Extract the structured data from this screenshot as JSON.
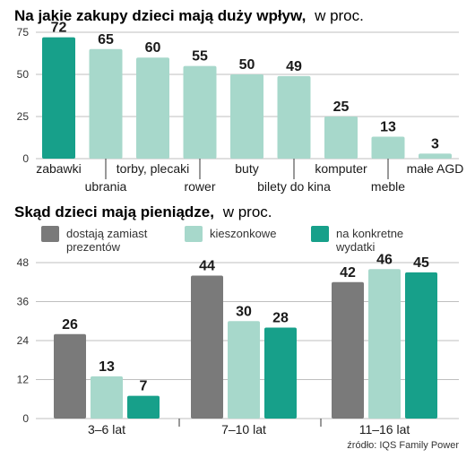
{
  "chart_data": [
    {
      "type": "bar",
      "title": "Na jakie zakupy dzieci mają duży wpływ,",
      "title_suffix": "w proc.",
      "categories": [
        "zabawki",
        "ubrania",
        "torby, plecaki",
        "rower",
        "buty",
        "bilety do kina",
        "komputer",
        "meble",
        "małe AGD"
      ],
      "values": [
        72,
        65,
        60,
        55,
        50,
        49,
        25,
        13,
        3
      ],
      "ylim": [
        0,
        75
      ],
      "yticks": [
        0,
        25,
        50,
        75
      ],
      "grid": true,
      "colors": {
        "highlight": "#17a08a",
        "bar": "#a7d8cb",
        "grid": "#bfbfbf"
      }
    },
    {
      "type": "bar",
      "title": "Skąd dzieci mają pieniądze,",
      "title_suffix": "w proc.",
      "categories": [
        "3–6 lat",
        "7–10 lat",
        "11–16 lat"
      ],
      "series": [
        {
          "name": "dostają zamiast prezentów",
          "color": "#7a7a7a",
          "values": [
            26,
            44,
            42
          ]
        },
        {
          "name": "kieszonkowe",
          "color": "#a7d8cb",
          "values": [
            13,
            30,
            46
          ]
        },
        {
          "name": "na konkretne wydatki",
          "color": "#17a08a",
          "values": [
            7,
            28,
            45
          ]
        }
      ],
      "ylim": [
        0,
        48
      ],
      "yticks": [
        0,
        12,
        24,
        36,
        48
      ],
      "grid": true,
      "legend_position": "top"
    }
  ],
  "source": "źródło: IQS Family Power"
}
